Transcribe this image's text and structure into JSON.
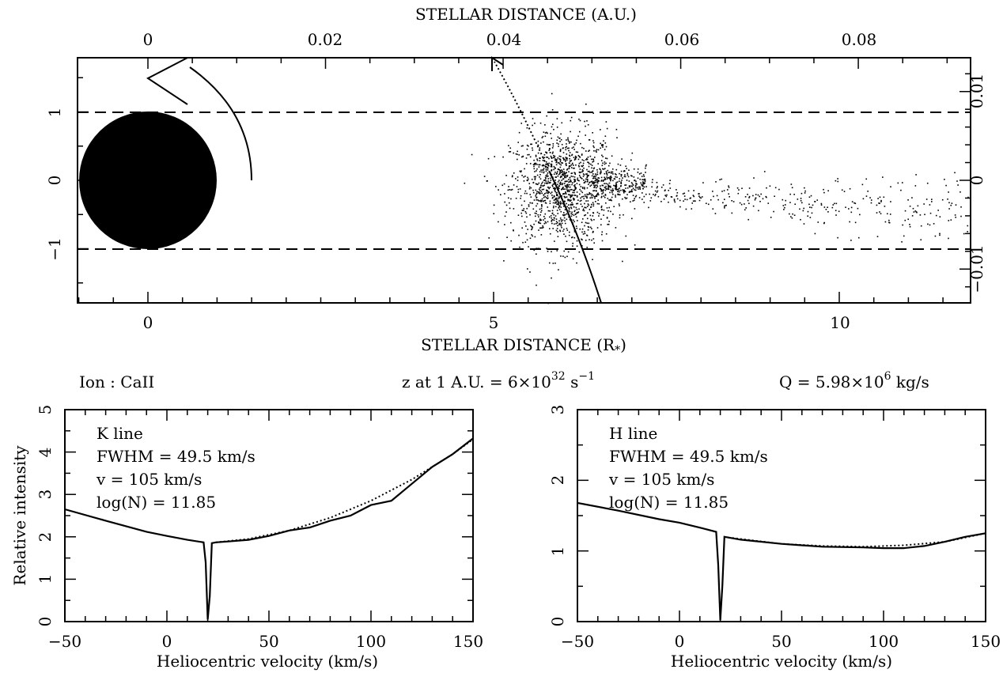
{
  "top_panel": {
    "top_axis_title": "STELLAR DISTANCE (A.U.)",
    "bottom_axis_title": "STELLAR DISTANCE (R",
    "bottom_axis_title_sub": "*",
    "bottom_axis_title_end": ")",
    "top_ticks": [
      "0",
      "0.02",
      "0.04",
      "0.06",
      "0.08"
    ],
    "bottom_ticks": [
      "0",
      "5",
      "10"
    ],
    "left_ticks": [
      "−1",
      "0",
      "1"
    ],
    "right_ticks": [
      "−0.01",
      "0",
      "0.01"
    ]
  },
  "params": {
    "ion": "Ion : CaII",
    "z_prefix": "z at 1 A.U. = 6×10",
    "z_exp": "32",
    "z_unit": " s",
    "z_unit_exp": "−1",
    "q_prefix": "Q = 5.98×10",
    "q_exp": "6",
    "q_unit": " kg/s"
  },
  "k_panel": {
    "line": "K line",
    "fwhm": "FWHM = 49.5 km/s",
    "v": "v = 105 km/s",
    "logn": "log(N) = 11.85",
    "ylabel": "Relative intensity",
    "xlabel": "Heliocentric velocity (km/s)",
    "x_ticks": [
      "−50",
      "0",
      "50",
      "100",
      "150"
    ],
    "y_ticks": [
      "0",
      "1",
      "2",
      "3",
      "4",
      "5"
    ]
  },
  "h_panel": {
    "line": "H line",
    "fwhm": "FWHM = 49.5 km/s",
    "v": "v = 105 km/s",
    "logn": "log(N) = 11.85",
    "xlabel": "Heliocentric velocity (km/s)",
    "x_ticks": [
      "−50",
      "0",
      "50",
      "100",
      "150"
    ],
    "y_ticks": [
      "0",
      "1",
      "2",
      "3"
    ]
  },
  "chart_data": [
    {
      "type": "scatter",
      "xlabel": "STELLAR DISTANCE (R*)",
      "x2label": "STELLAR DISTANCE (A.U.)",
      "xlim": [
        -1.0,
        11.9
      ],
      "ylim": [
        -1.75,
        1.75
      ],
      "x2lim": [
        -0.0042,
        0.0945
      ],
      "y2lim": [
        -0.013,
        0.013
      ],
      "star": {
        "x": 0,
        "y": 0,
        "radius": 1
      },
      "dashed_lines_y": [
        1,
        -1
      ],
      "cloud_center": {
        "x": 6.0,
        "y": -0.1
      },
      "trail": {
        "x_range": [
          7.2,
          11.9
        ],
        "y_range": [
          -1.1,
          0.0
        ]
      }
    },
    {
      "type": "line",
      "title": "K line",
      "xlabel": "Heliocentric velocity (km/s)",
      "ylabel": "Relative intensity",
      "xlim": [
        -50,
        150
      ],
      "ylim": [
        0,
        5
      ],
      "series": [
        {
          "style": "solid",
          "x": [
            -50,
            -30,
            -10,
            0,
            10,
            18,
            19,
            20,
            21,
            22,
            24,
            30,
            40,
            50,
            60,
            70,
            80,
            90,
            100,
            110,
            120,
            130,
            140,
            150
          ],
          "y": [
            2.65,
            2.38,
            2.12,
            2.02,
            1.93,
            1.87,
            1.4,
            0.05,
            0.6,
            1.85,
            1.87,
            1.89,
            1.93,
            2.02,
            2.15,
            2.22,
            2.38,
            2.5,
            2.75,
            2.85,
            3.25,
            3.65,
            3.95,
            4.32
          ]
        },
        {
          "style": "dotted",
          "x": [
            24,
            40,
            60,
            80,
            100,
            120,
            140,
            150
          ],
          "y": [
            1.87,
            1.95,
            2.15,
            2.45,
            2.85,
            3.35,
            3.95,
            4.3
          ]
        }
      ]
    },
    {
      "type": "line",
      "title": "H line",
      "xlabel": "Heliocentric velocity (km/s)",
      "xlim": [
        -50,
        150
      ],
      "ylim": [
        0,
        3
      ],
      "series": [
        {
          "style": "solid",
          "x": [
            -50,
            -30,
            -10,
            0,
            10,
            18,
            19,
            20,
            21,
            22,
            24,
            30,
            50,
            70,
            90,
            100,
            110,
            120,
            130,
            140,
            150
          ],
          "y": [
            1.68,
            1.57,
            1.45,
            1.4,
            1.33,
            1.27,
            0.8,
            0.02,
            0.5,
            1.2,
            1.19,
            1.16,
            1.1,
            1.06,
            1.05,
            1.04,
            1.04,
            1.07,
            1.13,
            1.2,
            1.25
          ]
        },
        {
          "style": "dotted",
          "x": [
            24,
            50,
            70,
            90,
            110,
            130,
            150
          ],
          "y": [
            1.19,
            1.1,
            1.07,
            1.06,
            1.08,
            1.13,
            1.25
          ]
        }
      ]
    }
  ]
}
